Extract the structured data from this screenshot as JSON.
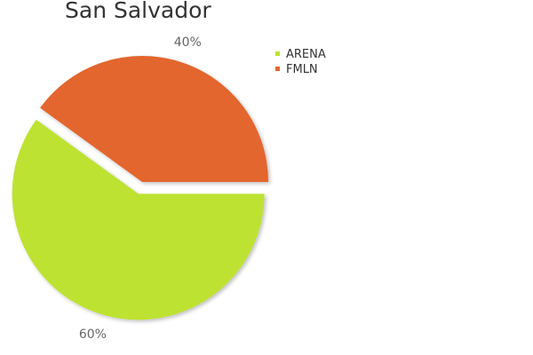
{
  "chart_data": {
    "type": "pie",
    "title": "San Salvador",
    "categories": [
      "ARENA",
      "FMLN"
    ],
    "values": [
      60,
      40
    ],
    "labels": [
      "60%",
      "40%"
    ],
    "colors": [
      "#bde230",
      "#e2662f"
    ],
    "legend_position": "top-right",
    "exploded": "ARENA"
  }
}
